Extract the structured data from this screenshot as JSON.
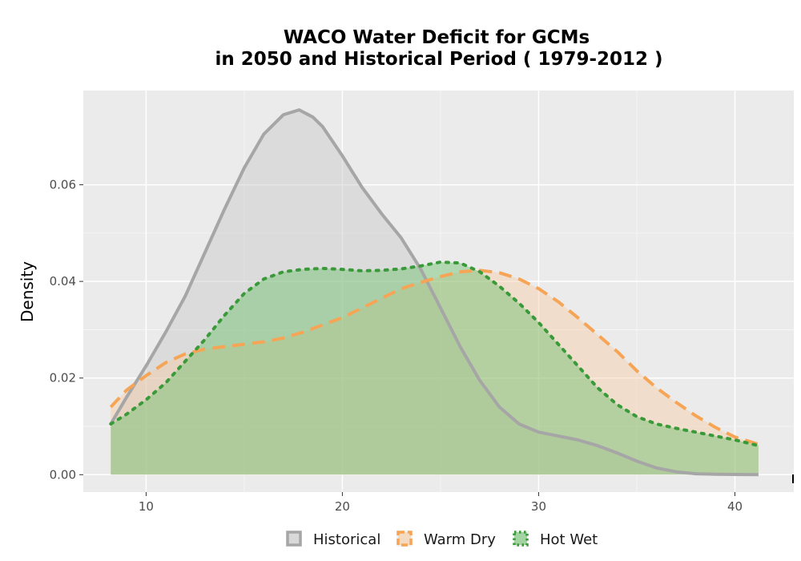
{
  "chart_data": {
    "type": "area",
    "title_lines": [
      "WACO  Water Deficit for GCMs",
      "in 2050 and Historical Period ( 1979-2012 )"
    ],
    "xlabel": "",
    "ylabel": "Density",
    "xlim": [
      6.8,
      43
    ],
    "ylim": [
      -0.0036,
      0.0795
    ],
    "x_ticks": [
      10,
      20,
      30,
      40
    ],
    "x_tick_labels": [
      "10",
      "20",
      "30",
      "40"
    ],
    "y_ticks": [
      0.0,
      0.02,
      0.04,
      0.06
    ],
    "y_tick_labels": [
      "0.00",
      "0.02",
      "0.04",
      "0.06"
    ],
    "grid": true,
    "legend_position": "bottom",
    "series": [
      {
        "name": "Historical",
        "color": "#a6a6a6",
        "fill": "#c8c8c8",
        "fill_opacity": 0.45,
        "dash": "solid",
        "x": [
          8.2,
          9,
          10,
          11,
          12,
          13,
          14,
          15,
          16,
          17,
          17.8,
          18.5,
          19,
          20,
          21,
          22,
          23,
          24,
          25,
          26,
          27,
          28,
          29,
          30,
          31,
          32,
          33,
          34,
          35,
          36,
          37,
          38,
          39,
          40,
          41.2
        ],
        "y": [
          0.0105,
          0.016,
          0.0225,
          0.0295,
          0.037,
          0.046,
          0.055,
          0.0635,
          0.0705,
          0.0745,
          0.0755,
          0.074,
          0.072,
          0.066,
          0.0595,
          0.054,
          0.049,
          0.0425,
          0.0345,
          0.0265,
          0.0195,
          0.014,
          0.0105,
          0.0088,
          0.008,
          0.0072,
          0.006,
          0.0045,
          0.0028,
          0.0014,
          0.0006,
          0.0002,
          0.0001,
          5e-05,
          0.0
        ]
      },
      {
        "name": "Warm Dry",
        "color": "#f5a555",
        "fill": "#f7c79a",
        "fill_opacity": 0.4,
        "dash": "dashed",
        "x": [
          8.2,
          9,
          10,
          11,
          12,
          13,
          14,
          15,
          16,
          17,
          18,
          19,
          20,
          21,
          22,
          23,
          24,
          25,
          26,
          27,
          28,
          29,
          30,
          31,
          32,
          33,
          34,
          35,
          36,
          37,
          38,
          39,
          40,
          41.2
        ],
        "y": [
          0.014,
          0.0175,
          0.0205,
          0.0232,
          0.025,
          0.026,
          0.0265,
          0.027,
          0.0275,
          0.0283,
          0.0295,
          0.031,
          0.0325,
          0.0345,
          0.0365,
          0.0385,
          0.0398,
          0.041,
          0.042,
          0.0423,
          0.0418,
          0.0405,
          0.0385,
          0.0358,
          0.0325,
          0.029,
          0.0255,
          0.0215,
          0.018,
          0.015,
          0.0122,
          0.0098,
          0.0078,
          0.0063
        ]
      },
      {
        "name": "Hot Wet",
        "color": "#3a9a3a",
        "fill": "#6cc06c",
        "fill_opacity": 0.45,
        "dash": "dotted",
        "x": [
          8.2,
          9,
          10,
          11,
          12,
          13,
          14,
          15,
          16,
          17,
          18,
          19,
          20,
          21,
          22,
          23,
          24,
          25,
          26,
          27,
          28,
          29,
          30,
          31,
          32,
          33,
          34,
          35,
          36,
          37,
          38,
          39,
          40,
          41.2
        ],
        "y": [
          0.0105,
          0.0125,
          0.0155,
          0.019,
          0.0235,
          0.028,
          0.033,
          0.0375,
          0.0405,
          0.042,
          0.0425,
          0.0427,
          0.0425,
          0.0422,
          0.0423,
          0.0426,
          0.0432,
          0.044,
          0.0438,
          0.042,
          0.039,
          0.0355,
          0.0315,
          0.027,
          0.0225,
          0.018,
          0.0145,
          0.012,
          0.0105,
          0.0096,
          0.0088,
          0.008,
          0.0072,
          0.006
        ]
      }
    ]
  }
}
